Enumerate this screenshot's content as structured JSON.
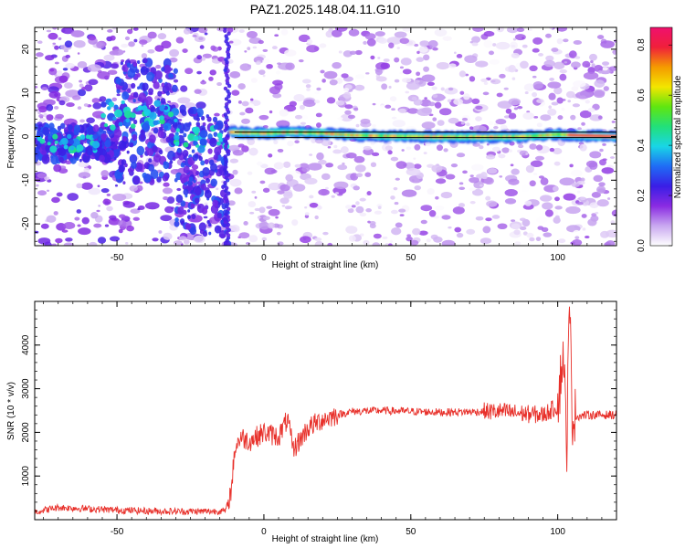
{
  "figure": {
    "title": "PAZ1.2025.148.04.11.G10"
  },
  "chart_data": [
    {
      "type": "heatmap",
      "xlabel": "Height of straight line (km)",
      "ylabel": "Frequency (Hz)",
      "xlim": [
        -78,
        120
      ],
      "ylim": [
        -25,
        25
      ],
      "xticks": [
        "-50",
        "0",
        "50",
        "100"
      ],
      "xtick_values": [
        -50,
        0,
        50,
        100
      ],
      "yticks": [
        "-20",
        "-10",
        "0",
        "10",
        "20"
      ],
      "ytick_values": [
        -20,
        -10,
        0,
        10,
        20
      ],
      "colorbar": {
        "label": "Normalized spectral amplitude",
        "range": [
          0,
          0.87
        ],
        "ticks": [
          "0.0",
          "0.2",
          "0.4",
          "0.6",
          "0.8"
        ],
        "tick_values": [
          0,
          0.2,
          0.4,
          0.6,
          0.8
        ],
        "colors": [
          "#ffffff",
          "#c9a8f0",
          "#8a2be2",
          "#3a1ee6",
          "#1f6cf5",
          "#19d6e6",
          "#22e07a",
          "#5fe610",
          "#f3e600",
          "#f59a00",
          "#f0203a",
          "#f0106e"
        ]
      },
      "features": {
        "signal_start_km": -12,
        "main_line_x": [
          -10,
          0,
          10,
          20,
          30,
          40,
          50,
          60,
          70,
          80,
          90,
          100,
          105,
          120
        ],
        "main_line_freq": [
          1.0,
          0.8,
          1.0,
          0.8,
          0.3,
          0.1,
          0.0,
          -0.1,
          -0.1,
          -0.1,
          0.0,
          0.5,
          0.3,
          0.0
        ],
        "model_line_x": [
          -10,
          120
        ],
        "model_line_freq": [
          0.4,
          0.4
        ]
      }
    },
    {
      "type": "line",
      "xlabel": "Height of straight line (km)",
      "ylabel": "SNR (10 * v/v)",
      "xlim": [
        -78,
        120
      ],
      "ylim": [
        0,
        5000
      ],
      "xticks": [
        "-50",
        "0",
        "50",
        "100"
      ],
      "xtick_values": [
        -50,
        0,
        50,
        100
      ],
      "yticks": [
        "1000",
        "2000",
        "3000",
        "4000"
      ],
      "ytick_values": [
        1000,
        2000,
        3000,
        4000
      ],
      "series_color": "#e8302a",
      "x": [
        -78,
        -70,
        -60,
        -50,
        -40,
        -30,
        -20,
        -13,
        -11,
        -10,
        -8,
        -5,
        0,
        5,
        8,
        10,
        15,
        20,
        25,
        30,
        40,
        50,
        60,
        70,
        80,
        90,
        95,
        100,
        102,
        103,
        104,
        105,
        110,
        120
      ],
      "y": [
        180,
        280,
        250,
        220,
        200,
        190,
        190,
        200,
        700,
        1600,
        1900,
        1800,
        2000,
        1900,
        2300,
        1600,
        2100,
        2300,
        2400,
        2480,
        2500,
        2480,
        2460,
        2470,
        2480,
        2420,
        2400,
        2600,
        3900,
        1500,
        4900,
        2350,
        2400,
        2400
      ]
    }
  ]
}
